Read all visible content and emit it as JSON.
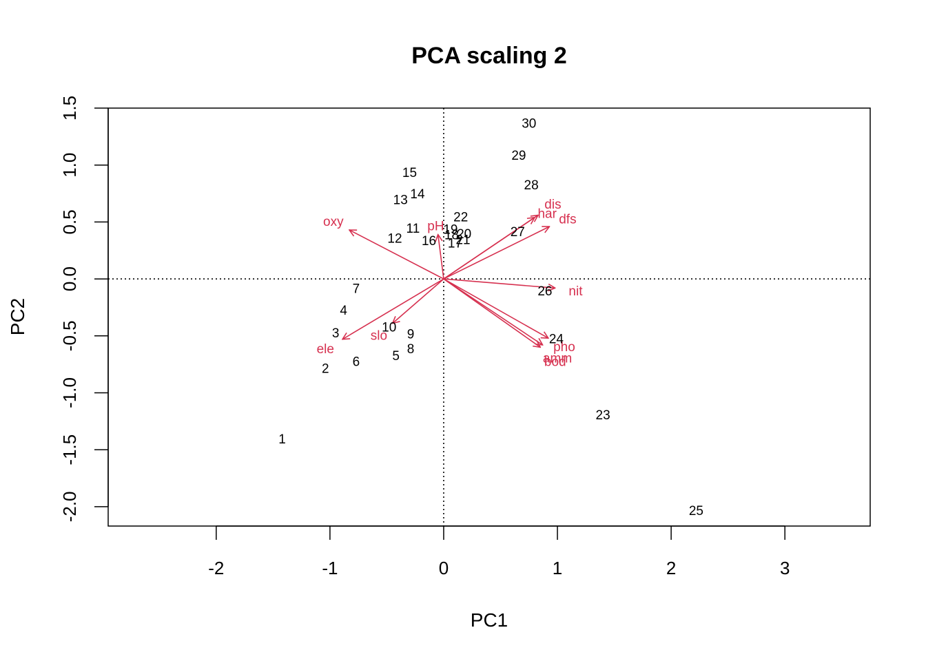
{
  "chart_data": {
    "type": "scatter",
    "title": "PCA scaling 2",
    "xlabel": "PC1",
    "ylabel": "PC2",
    "xlim": [
      -2.95,
      3.75
    ],
    "ylim": [
      -2.17,
      1.5
    ],
    "xticks": [
      -2,
      -1,
      0,
      1,
      2,
      3
    ],
    "yticks": [
      -2.0,
      -1.5,
      -1.0,
      -0.5,
      0.0,
      0.5,
      1.0,
      1.5
    ],
    "xtick_labels": [
      "-2",
      "-1",
      "0",
      "1",
      "2",
      "3"
    ],
    "ytick_labels": [
      "-2.0",
      "-1.5",
      "-1.0",
      "-0.5",
      "0.0",
      "0.5",
      "1.0",
      "1.5"
    ],
    "grid": false,
    "reference_lines": {
      "x": 0,
      "y": 0,
      "style": "dotted"
    },
    "arrow_color": "#D6304F",
    "site_color": "#000000",
    "sites": [
      {
        "label": "1",
        "x": -1.42,
        "y": -1.41
      },
      {
        "label": "2",
        "x": -1.04,
        "y": -0.79
      },
      {
        "label": "3",
        "x": -0.95,
        "y": -0.48
      },
      {
        "label": "4",
        "x": -0.88,
        "y": -0.28
      },
      {
        "label": "5",
        "x": -0.42,
        "y": -0.68
      },
      {
        "label": "6",
        "x": -0.77,
        "y": -0.73
      },
      {
        "label": "7",
        "x": -0.77,
        "y": -0.09
      },
      {
        "label": "8",
        "x": -0.29,
        "y": -0.62
      },
      {
        "label": "9",
        "x": -0.29,
        "y": -0.49
      },
      {
        "label": "10",
        "x": -0.48,
        "y": -0.43
      },
      {
        "label": "11",
        "x": -0.27,
        "y": 0.44
      },
      {
        "label": "12",
        "x": -0.43,
        "y": 0.35
      },
      {
        "label": "13",
        "x": -0.38,
        "y": 0.69
      },
      {
        "label": "14",
        "x": -0.23,
        "y": 0.74
      },
      {
        "label": "15",
        "x": -0.3,
        "y": 0.93
      },
      {
        "label": "16",
        "x": -0.13,
        "y": 0.33
      },
      {
        "label": "17",
        "x": 0.1,
        "y": 0.31
      },
      {
        "label": "18",
        "x": 0.07,
        "y": 0.38
      },
      {
        "label": "19",
        "x": 0.06,
        "y": 0.43
      },
      {
        "label": "20",
        "x": 0.18,
        "y": 0.39
      },
      {
        "label": "21",
        "x": 0.17,
        "y": 0.34
      },
      {
        "label": "22",
        "x": 0.15,
        "y": 0.54
      },
      {
        "label": "23",
        "x": 1.4,
        "y": -1.2
      },
      {
        "label": "24",
        "x": 0.99,
        "y": -0.53
      },
      {
        "label": "25",
        "x": 2.22,
        "y": -2.04
      },
      {
        "label": "26",
        "x": 0.89,
        "y": -0.11
      },
      {
        "label": "27",
        "x": 0.65,
        "y": 0.41
      },
      {
        "label": "28",
        "x": 0.77,
        "y": 0.82
      },
      {
        "label": "29",
        "x": 0.66,
        "y": 1.08
      },
      {
        "label": "30",
        "x": 0.75,
        "y": 1.36
      }
    ],
    "variables": [
      {
        "label": "dfs",
        "x": 0.93,
        "y": 0.46,
        "label_x": 1.09,
        "label_y": 0.52
      },
      {
        "label": "ele",
        "x": -0.89,
        "y": -0.53,
        "label_x": -1.04,
        "label_y": -0.62
      },
      {
        "label": "slo",
        "x": -0.45,
        "y": -0.39,
        "label_x": -0.57,
        "label_y": -0.5
      },
      {
        "label": "dis",
        "x": 0.83,
        "y": 0.56,
        "label_x": 0.96,
        "label_y": 0.65
      },
      {
        "label": "pH",
        "x": -0.05,
        "y": 0.39,
        "label_x": -0.07,
        "label_y": 0.46
      },
      {
        "label": "har",
        "x": 0.8,
        "y": 0.54,
        "label_x": 0.91,
        "label_y": 0.57
      },
      {
        "label": "pho",
        "x": 0.92,
        "y": -0.52,
        "label_x": 1.06,
        "label_y": -0.6
      },
      {
        "label": "nit",
        "x": 0.98,
        "y": -0.08,
        "label_x": 1.16,
        "label_y": -0.11
      },
      {
        "label": "amm",
        "x": 0.87,
        "y": -0.58,
        "label_x": 1.0,
        "label_y": -0.7
      },
      {
        "label": "oxy",
        "x": -0.83,
        "y": 0.43,
        "label_x": -0.97,
        "label_y": 0.5
      },
      {
        "label": "bod",
        "x": 0.85,
        "y": -0.6,
        "label_x": 0.98,
        "label_y": -0.73
      }
    ]
  }
}
